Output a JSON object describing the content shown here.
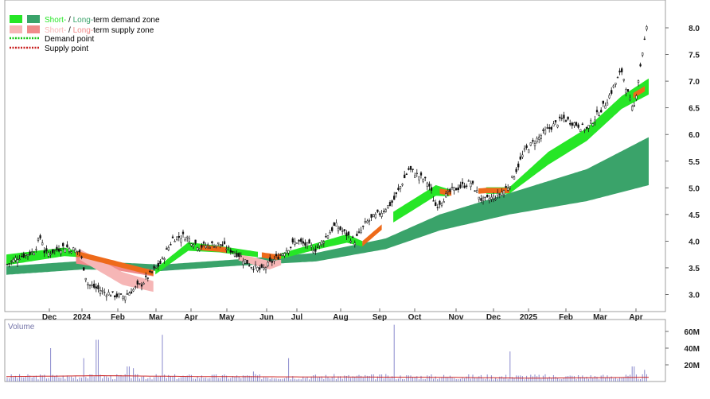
{
  "colors": {
    "demand_short": "#26e626",
    "demand_long": "#3aa36a",
    "supply_short": "#f6b6b6",
    "supply_long": "#f08a8a",
    "demand_point": "#16c416",
    "supply_point": "#c81e1e",
    "volume_bar": "#8888cc",
    "volume_avg": "#cc2222",
    "volume_title": "#7777aa",
    "orange_band": "#ee6a1a"
  },
  "legend": {
    "demand_zone": {
      "part1": "Short-",
      "part2": " / ",
      "part3": "Long-",
      "part4": "term demand zone"
    },
    "supply_zone": {
      "part1": "Short-",
      "part2": " / ",
      "part3": "Long-",
      "part4": "term supply zone"
    },
    "demand_point": "Demand point",
    "supply_point": "Supply point"
  },
  "chart_data": [
    {
      "type": "candlestick",
      "x_ticks": [
        "Dec",
        "2024",
        "Feb",
        "Mar",
        "Apr",
        "May",
        "Jun",
        "Jul",
        "Aug",
        "Sep",
        "Oct",
        "Nov",
        "Dec",
        "2025",
        "Feb",
        "Mar",
        "Apr"
      ],
      "ylim": [
        2.75,
        8.5
      ],
      "y_ticks": [
        "3.0",
        "3.5",
        "4.0",
        "4.5",
        "5.0",
        "5.5",
        "6.0",
        "6.5",
        "7.0",
        "7.5",
        "8.0"
      ],
      "price_path": [
        {
          "t": 0,
          "v": 3.55
        },
        {
          "t": 0.3,
          "v": 3.7
        },
        {
          "t": 0.7,
          "v": 3.8
        },
        {
          "t": 0.9,
          "v": 4.1
        },
        {
          "t": 1.0,
          "v": 3.75
        },
        {
          "t": 1.5,
          "v": 3.9
        },
        {
          "t": 1.9,
          "v": 3.8
        },
        {
          "t": 2.1,
          "v": 3.2
        },
        {
          "t": 2.5,
          "v": 3.05
        },
        {
          "t": 3.0,
          "v": 2.95
        },
        {
          "t": 3.5,
          "v": 3.2
        },
        {
          "t": 4.0,
          "v": 3.6
        },
        {
          "t": 4.3,
          "v": 4.05
        },
        {
          "t": 4.6,
          "v": 4.1
        },
        {
          "t": 5.0,
          "v": 3.9
        },
        {
          "t": 5.5,
          "v": 3.95
        },
        {
          "t": 6.0,
          "v": 3.75
        },
        {
          "t": 6.3,
          "v": 3.55
        },
        {
          "t": 6.6,
          "v": 3.45
        },
        {
          "t": 7.0,
          "v": 3.7
        },
        {
          "t": 7.5,
          "v": 4.0
        },
        {
          "t": 8.0,
          "v": 3.85
        },
        {
          "t": 8.5,
          "v": 4.3
        },
        {
          "t": 9.0,
          "v": 4.0
        },
        {
          "t": 9.3,
          "v": 4.35
        },
        {
          "t": 9.7,
          "v": 4.55
        },
        {
          "t": 10.0,
          "v": 4.75
        },
        {
          "t": 10.4,
          "v": 5.35
        },
        {
          "t": 10.9,
          "v": 5.1
        },
        {
          "t": 11.1,
          "v": 4.65
        },
        {
          "t": 11.5,
          "v": 4.95
        },
        {
          "t": 12.0,
          "v": 5.1
        },
        {
          "t": 12.3,
          "v": 4.75
        },
        {
          "t": 12.7,
          "v": 4.85
        },
        {
          "t": 13.0,
          "v": 5.05
        },
        {
          "t": 13.4,
          "v": 5.7
        },
        {
          "t": 14.0,
          "v": 6.1
        },
        {
          "t": 14.4,
          "v": 6.3
        },
        {
          "t": 15.0,
          "v": 6.1
        },
        {
          "t": 15.5,
          "v": 6.6
        },
        {
          "t": 15.9,
          "v": 7.2
        },
        {
          "t": 16.2,
          "v": 6.4
        },
        {
          "t": 16.45,
          "v": 7.6
        },
        {
          "t": 16.6,
          "v": 8.2
        }
      ],
      "zones": {
        "demand_short": [
          {
            "t": 0,
            "v": 3.65,
            "w": 0.1,
            "show": 1
          },
          {
            "t": 1.5,
            "v": 3.8,
            "w": 0.08,
            "show": 1
          },
          {
            "t": 1.9,
            "v": 3.75,
            "w": 0.05,
            "show": 0
          },
          {
            "t": 3.8,
            "v": 3.4,
            "w": 0.05,
            "show": 1
          },
          {
            "t": 4.7,
            "v": 3.9,
            "w": 0.08,
            "show": 1
          },
          {
            "t": 5.5,
            "v": 3.85,
            "w": 0.06,
            "show": 1
          },
          {
            "t": 6.5,
            "v": 3.75,
            "w": 0.05,
            "show": 0
          },
          {
            "t": 7.0,
            "v": 3.7,
            "w": 0.05,
            "show": 1
          },
          {
            "t": 8.0,
            "v": 3.9,
            "w": 0.06,
            "show": 1
          },
          {
            "t": 8.8,
            "v": 4.05,
            "w": 0.08,
            "show": 1
          },
          {
            "t": 9.2,
            "v": 3.95,
            "w": 0.05,
            "show": 0
          },
          {
            "t": 10.0,
            "v": 4.45,
            "w": 0.1,
            "show": 1
          },
          {
            "t": 11.1,
            "v": 4.95,
            "w": 0.1,
            "show": 1
          },
          {
            "t": 11.5,
            "v": 4.9,
            "w": 0.06,
            "show": 0
          },
          {
            "t": 12.4,
            "v": 4.95,
            "w": 0.06,
            "show": 1
          },
          {
            "t": 13.0,
            "v": 4.95,
            "w": 0.06,
            "show": 1
          },
          {
            "t": 14.0,
            "v": 5.55,
            "w": 0.12,
            "show": 1
          },
          {
            "t": 15.0,
            "v": 6.0,
            "w": 0.12,
            "show": 1
          },
          {
            "t": 15.9,
            "v": 6.6,
            "w": 0.12,
            "show": 1
          },
          {
            "t": 16.6,
            "v": 6.9,
            "w": 0.15,
            "show": 1
          }
        ],
        "demand_long": [
          {
            "t": 0,
            "v": 3.45,
            "w": 0.08
          },
          {
            "t": 2.0,
            "v": 3.55,
            "w": 0.08
          },
          {
            "t": 4.0,
            "v": 3.5,
            "w": 0.06
          },
          {
            "t": 6.0,
            "v": 3.6,
            "w": 0.06
          },
          {
            "t": 8.0,
            "v": 3.7,
            "w": 0.08
          },
          {
            "t": 9.8,
            "v": 3.95,
            "w": 0.1
          },
          {
            "t": 11.2,
            "v": 4.35,
            "w": 0.15
          },
          {
            "t": 13.0,
            "v": 4.7,
            "w": 0.2
          },
          {
            "t": 15.0,
            "v": 5.05,
            "w": 0.3
          },
          {
            "t": 16.6,
            "v": 5.5,
            "w": 0.45
          }
        ],
        "supply_long": [
          {
            "t": 1.8,
            "v": 3.65,
            "w": 0.07
          },
          {
            "t": 3.8,
            "v": 3.4,
            "w": 0.06
          }
        ],
        "supply_short": [
          {
            "t": 1.9,
            "v": 3.75,
            "w": 0.1
          },
          {
            "t": 3.0,
            "v": 3.3,
            "w": 0.12
          },
          {
            "t": 3.8,
            "v": 3.15,
            "w": 0.1
          }
        ],
        "supply_short_2": [
          {
            "t": 6.0,
            "v": 3.7,
            "w": 0.06
          },
          {
            "t": 6.8,
            "v": 3.55,
            "w": 0.08
          },
          {
            "t": 7.1,
            "v": 3.6,
            "w": 0.05
          }
        ],
        "orange_segments": [
          {
            "t0": 1.8,
            "t1": 3.8
          },
          {
            "t0": 5.0,
            "t1": 5.7
          },
          {
            "t0": 6.6,
            "t1": 7.1
          },
          {
            "t0": 9.2,
            "t1": 9.7
          },
          {
            "t0": 11.2,
            "t1": 11.5
          },
          {
            "t0": 12.2,
            "t1": 13.0
          },
          {
            "t0": 16.2,
            "t1": 16.5
          }
        ]
      }
    },
    {
      "type": "bar",
      "title": "Volume",
      "y_ticks": [
        "20M",
        "40M",
        "60M"
      ],
      "ylim": [
        0,
        70
      ],
      "spikes": [
        {
          "t": 1.15,
          "v": 40
        },
        {
          "t": 2.0,
          "v": 28
        },
        {
          "t": 2.35,
          "v": 50
        },
        {
          "t": 3.15,
          "v": 18
        },
        {
          "t": 3.3,
          "v": 16
        },
        {
          "t": 4.05,
          "v": 56
        },
        {
          "t": 6.4,
          "v": 12
        },
        {
          "t": 7.3,
          "v": 28
        },
        {
          "t": 10.0,
          "v": 68
        },
        {
          "t": 13.0,
          "v": 36
        },
        {
          "t": 16.2,
          "v": 18
        },
        {
          "t": 16.5,
          "v": 14
        }
      ],
      "base": 5,
      "avg_line": [
        {
          "t": 0,
          "v": 6
        },
        {
          "t": 2.5,
          "v": 7
        },
        {
          "t": 5.0,
          "v": 6
        },
        {
          "t": 8.0,
          "v": 5.5
        },
        {
          "t": 11.5,
          "v": 5
        },
        {
          "t": 13.5,
          "v": 4
        },
        {
          "t": 15.0,
          "v": 4.5
        },
        {
          "t": 16.6,
          "v": 5
        }
      ]
    }
  ]
}
